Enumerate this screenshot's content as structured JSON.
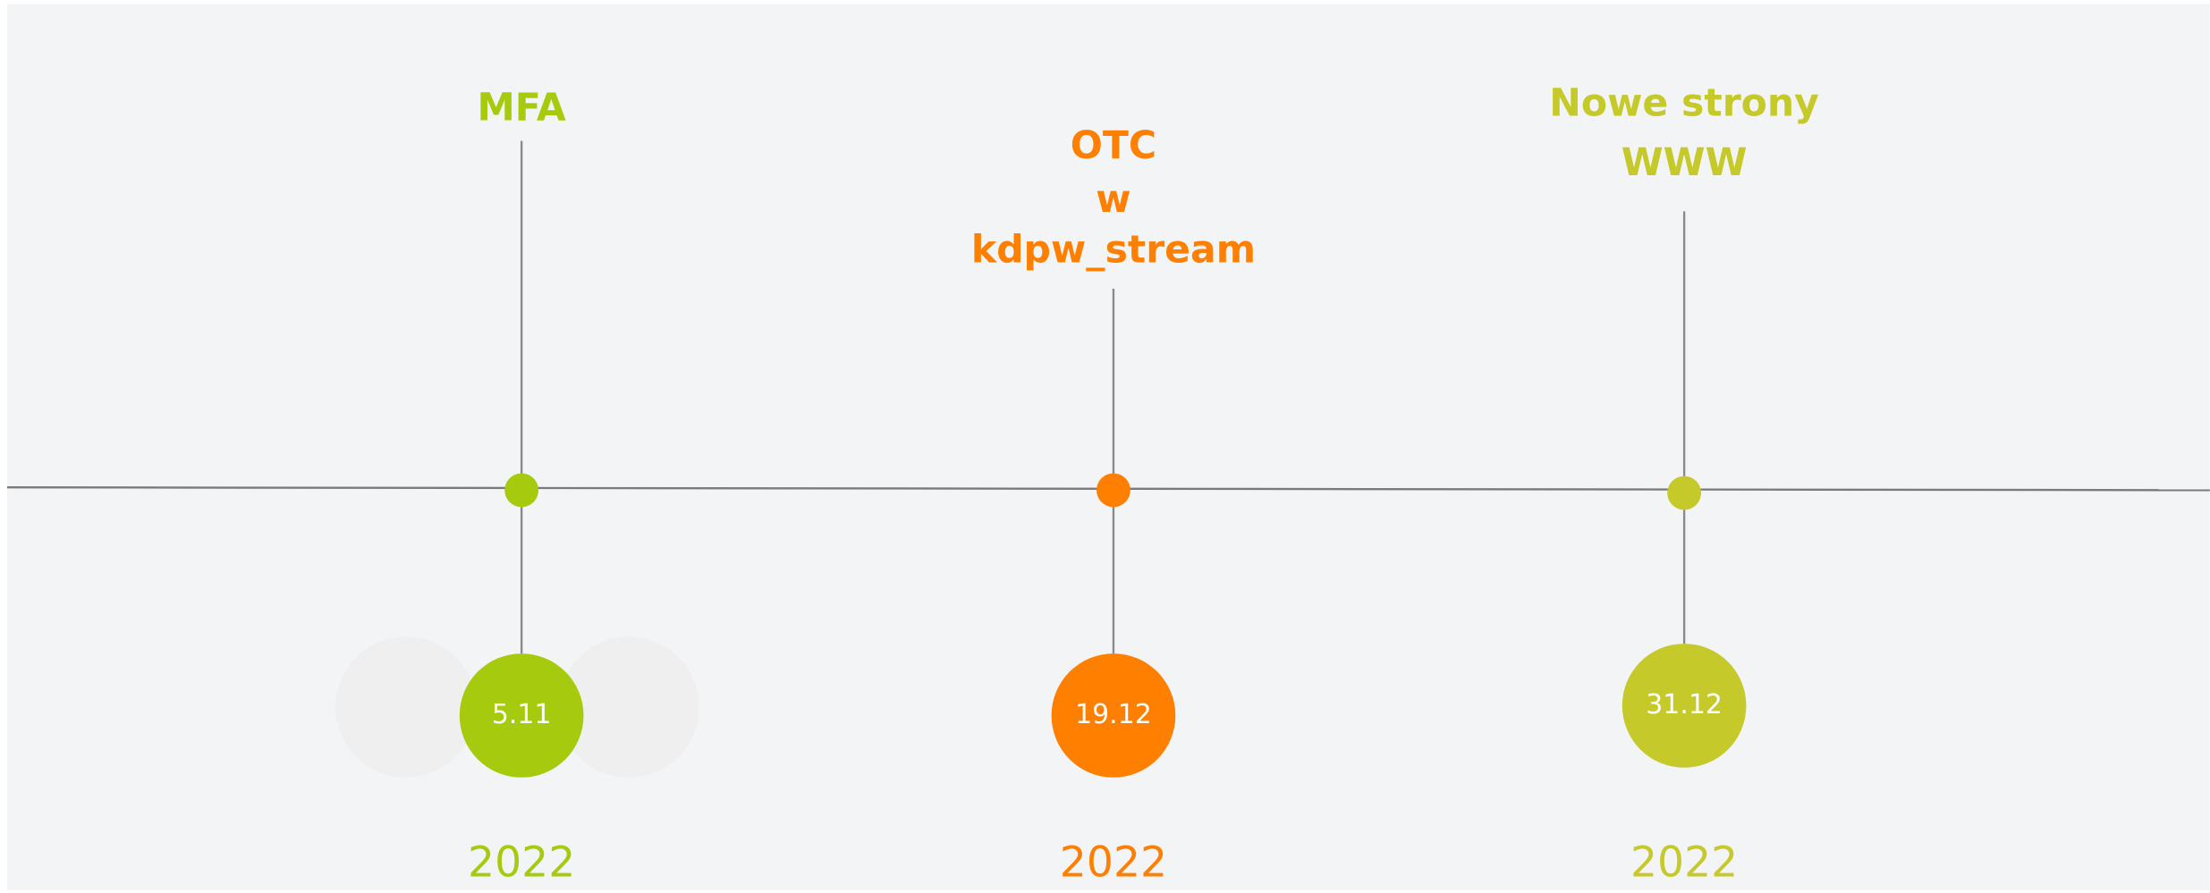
{
  "timeline": {
    "events": [
      {
        "title_lines": [
          "MFA"
        ],
        "date": "5.11",
        "year": "2022",
        "color": "#a6cb0e"
      },
      {
        "title_lines": [
          "OTC",
          "w",
          "kdpw_stream"
        ],
        "date": "19.12",
        "year": "2022",
        "color": "#ff8000"
      },
      {
        "title_lines": [
          "Nowe strony",
          "WWW"
        ],
        "date": "31.12",
        "year": "2022",
        "color": "#c5c92a"
      }
    ]
  }
}
